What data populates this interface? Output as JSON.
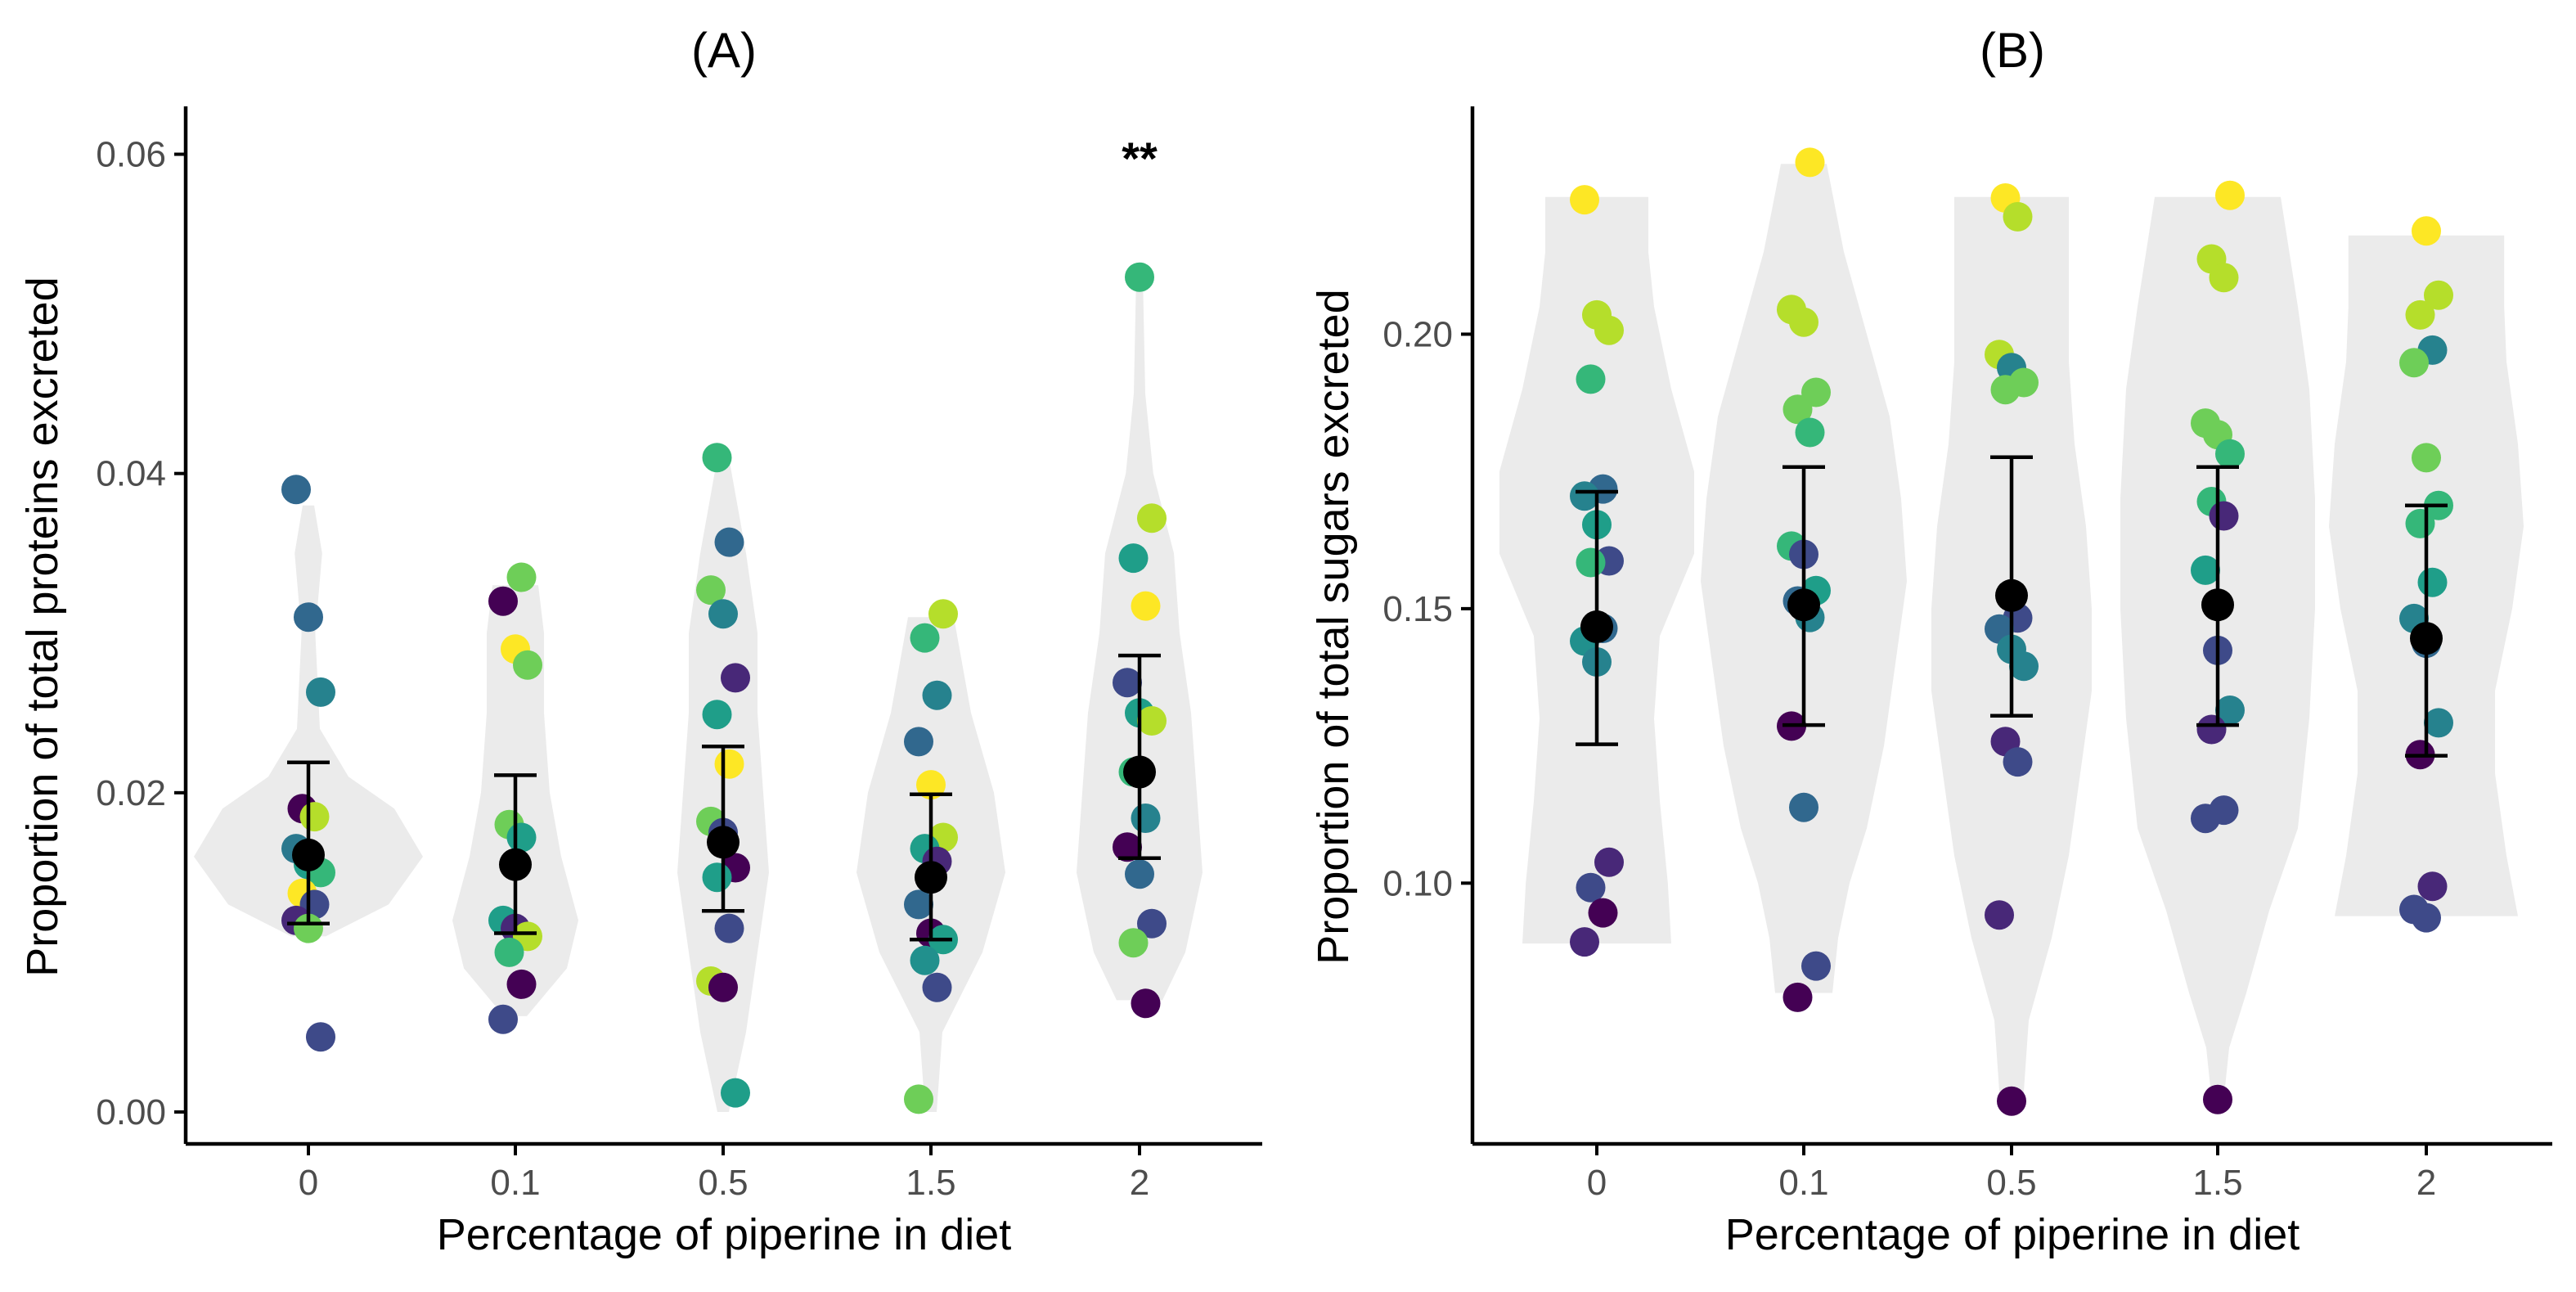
{
  "chart_data": [
    {
      "type": "scatter",
      "panel": "(A)",
      "title": "(A)",
      "xlabel": "Percentage of piperine in diet",
      "ylabel": "Proportion of total proteins excreted",
      "categories": [
        "0",
        "0.1",
        "0.5",
        "1.5",
        "2"
      ],
      "ylim": [
        -0.002,
        0.063
      ],
      "yticks": [
        0.0,
        0.02,
        0.04,
        0.06
      ],
      "ytick_labels": [
        "0.00",
        "0.02",
        "0.04",
        "0.06"
      ],
      "grid": false,
      "legend": "none",
      "violins": [
        {
          "min": 0.011,
          "max": 0.038,
          "profile": [
            [
              0.011,
              0.15
            ],
            [
              0.013,
              0.7
            ],
            [
              0.016,
              1.0
            ],
            [
              0.019,
              0.75
            ],
            [
              0.021,
              0.35
            ],
            [
              0.024,
              0.1
            ],
            [
              0.03,
              0.06
            ],
            [
              0.035,
              0.12
            ],
            [
              0.038,
              0.05
            ]
          ]
        },
        {
          "min": 0.006,
          "max": 0.033,
          "profile": [
            [
              0.006,
              0.1
            ],
            [
              0.009,
              0.45
            ],
            [
              0.012,
              0.55
            ],
            [
              0.016,
              0.4
            ],
            [
              0.02,
              0.3
            ],
            [
              0.025,
              0.25
            ],
            [
              0.03,
              0.25
            ],
            [
              0.033,
              0.2
            ]
          ]
        },
        {
          "min": 0.0,
          "max": 0.041,
          "profile": [
            [
              0.0,
              0.05
            ],
            [
              0.005,
              0.2
            ],
            [
              0.01,
              0.3
            ],
            [
              0.015,
              0.4
            ],
            [
              0.02,
              0.35
            ],
            [
              0.025,
              0.3
            ],
            [
              0.03,
              0.3
            ],
            [
              0.035,
              0.2
            ],
            [
              0.041,
              0.05
            ]
          ]
        },
        {
          "min": 0.0,
          "max": 0.031,
          "profile": [
            [
              0.0,
              0.05
            ],
            [
              0.005,
              0.1
            ],
            [
              0.01,
              0.45
            ],
            [
              0.015,
              0.65
            ],
            [
              0.02,
              0.55
            ],
            [
              0.025,
              0.35
            ],
            [
              0.031,
              0.2
            ]
          ]
        },
        {
          "min": 0.007,
          "max": 0.052,
          "profile": [
            [
              0.007,
              0.2
            ],
            [
              0.01,
              0.4
            ],
            [
              0.015,
              0.55
            ],
            [
              0.02,
              0.5
            ],
            [
              0.025,
              0.45
            ],
            [
              0.03,
              0.35
            ],
            [
              0.035,
              0.3
            ],
            [
              0.04,
              0.12
            ],
            [
              0.045,
              0.05
            ],
            [
              0.052,
              0.03
            ]
          ]
        }
      ],
      "series": [
        {
          "category": "0",
          "values": [
            0.039,
            0.031,
            0.0263,
            0.019,
            0.0185,
            0.0165,
            0.0155,
            0.015,
            0.0137,
            0.013,
            0.012,
            0.0115,
            0.0047
          ],
          "colors": [
            "#31688e",
            "#31688e",
            "#26828e",
            "#440154",
            "#b5de2b",
            "#2a788e",
            "#1f9e89",
            "#35b779",
            "#fde725",
            "#3e4a89",
            "#482878",
            "#6ece58",
            "#3e4a89"
          ]
        },
        {
          "category": "0.1",
          "values": [
            0.0335,
            0.032,
            0.029,
            0.028,
            0.018,
            0.0172,
            0.012,
            0.0115,
            0.011,
            0.01,
            0.008,
            0.0058
          ],
          "colors": [
            "#6ece58",
            "#440154",
            "#fde725",
            "#6ece58",
            "#6ece58",
            "#1f9e89",
            "#1f9e89",
            "#482878",
            "#b5de2b",
            "#35b779",
            "#440154",
            "#3e4a89"
          ]
        },
        {
          "category": "0.5",
          "values": [
            0.041,
            0.0357,
            0.0327,
            0.0312,
            0.0272,
            0.0249,
            0.0218,
            0.0182,
            0.0175,
            0.0153,
            0.0147,
            0.0115,
            0.0082,
            0.0078,
            0.0012
          ],
          "colors": [
            "#35b779",
            "#31688e",
            "#6ece58",
            "#26828e",
            "#482878",
            "#1f9e89",
            "#fde725",
            "#6ece58",
            "#3e4a89",
            "#440154",
            "#1f9e89",
            "#3e4a89",
            "#b5de2b",
            "#440154",
            "#1f9e89"
          ]
        },
        {
          "category": "1.5",
          "values": [
            0.0312,
            0.0297,
            0.0261,
            0.0232,
            0.0205,
            0.0172,
            0.0165,
            0.0157,
            0.013,
            0.0112,
            0.0108,
            0.0095,
            0.0078,
            0.0008
          ],
          "colors": [
            "#b5de2b",
            "#35b779",
            "#26828e",
            "#31688e",
            "#fde725",
            "#b5de2b",
            "#1f9e89",
            "#482878",
            "#31688e",
            "#440154",
            "#1f9e89",
            "#21908d",
            "#3e4a89",
            "#6ece58"
          ]
        },
        {
          "category": "2",
          "values": [
            0.0523,
            0.0372,
            0.0347,
            0.0317,
            0.0269,
            0.025,
            0.0245,
            0.0213,
            0.0184,
            0.0166,
            0.0149,
            0.0118,
            0.0106,
            0.0068
          ],
          "colors": [
            "#35b779",
            "#b5de2b",
            "#1f9e89",
            "#fde725",
            "#3e4a89",
            "#1f9e89",
            "#b5de2b",
            "#35b779",
            "#26828e",
            "#440154",
            "#31688e",
            "#3e4a89",
            "#6ece58",
            "#440154"
          ]
        }
      ],
      "means": [
        0.0161,
        0.0155,
        0.0169,
        0.0147,
        0.0213
      ],
      "error_bars": [
        [
          0.0118,
          0.0219
        ],
        [
          0.0112,
          0.0211
        ],
        [
          0.0126,
          0.0229
        ],
        [
          0.0108,
          0.0199
        ],
        [
          0.0159,
          0.0286
        ]
      ],
      "annotations": [
        {
          "category": "2",
          "text": "**",
          "y": 0.0605
        }
      ]
    },
    {
      "type": "scatter",
      "panel": "(B)",
      "title": "(B)",
      "xlabel": "Percentage of piperine in diet",
      "ylabel": "Proportion of total sugars excreted",
      "categories": [
        "0",
        "0.1",
        "0.5",
        "1.5",
        "2"
      ],
      "ylim": [
        0.0525,
        0.2415
      ],
      "yticks": [
        0.1,
        0.15,
        0.2
      ],
      "ytick_labels": [
        "0.10",
        "0.15",
        "0.20"
      ],
      "grid": false,
      "legend": "none",
      "violins": [
        {
          "min": 0.089,
          "max": 0.225,
          "profile": [
            [
              0.089,
              0.65
            ],
            [
              0.1,
              0.62
            ],
            [
              0.115,
              0.55
            ],
            [
              0.13,
              0.5
            ],
            [
              0.145,
              0.55
            ],
            [
              0.16,
              0.85
            ],
            [
              0.175,
              0.85
            ],
            [
              0.19,
              0.65
            ],
            [
              0.205,
              0.5
            ],
            [
              0.215,
              0.45
            ],
            [
              0.225,
              0.45
            ]
          ]
        },
        {
          "min": 0.08,
          "max": 0.231,
          "profile": [
            [
              0.08,
              0.25
            ],
            [
              0.09,
              0.3
            ],
            [
              0.1,
              0.4
            ],
            [
              0.11,
              0.55
            ],
            [
              0.125,
              0.7
            ],
            [
              0.14,
              0.8
            ],
            [
              0.155,
              0.9
            ],
            [
              0.17,
              0.85
            ],
            [
              0.185,
              0.75
            ],
            [
              0.2,
              0.55
            ],
            [
              0.215,
              0.35
            ],
            [
              0.231,
              0.2
            ]
          ]
        },
        {
          "min": 0.06,
          "max": 0.225,
          "profile": [
            [
              0.06,
              0.1
            ],
            [
              0.075,
              0.15
            ],
            [
              0.09,
              0.35
            ],
            [
              0.105,
              0.5
            ],
            [
              0.12,
              0.6
            ],
            [
              0.135,
              0.7
            ],
            [
              0.15,
              0.7
            ],
            [
              0.165,
              0.65
            ],
            [
              0.18,
              0.55
            ],
            [
              0.195,
              0.5
            ],
            [
              0.21,
              0.5
            ],
            [
              0.225,
              0.5
            ]
          ]
        },
        {
          "min": 0.06,
          "max": 0.225,
          "profile": [
            [
              0.06,
              0.05
            ],
            [
              0.07,
              0.1
            ],
            [
              0.08,
              0.25
            ],
            [
              0.095,
              0.45
            ],
            [
              0.11,
              0.7
            ],
            [
              0.13,
              0.8
            ],
            [
              0.15,
              0.85
            ],
            [
              0.17,
              0.85
            ],
            [
              0.19,
              0.8
            ],
            [
              0.205,
              0.7
            ],
            [
              0.225,
              0.55
            ]
          ]
        },
        {
          "min": 0.094,
          "max": 0.218,
          "profile": [
            [
              0.094,
              0.8
            ],
            [
              0.105,
              0.7
            ],
            [
              0.12,
              0.6
            ],
            [
              0.135,
              0.6
            ],
            [
              0.15,
              0.75
            ],
            [
              0.165,
              0.85
            ],
            [
              0.18,
              0.8
            ],
            [
              0.195,
              0.7
            ],
            [
              0.205,
              0.68
            ],
            [
              0.218,
              0.68
            ]
          ]
        }
      ],
      "series": [
        {
          "category": "0",
          "values": [
            0.2245,
            0.2035,
            0.2007,
            0.1918,
            0.1718,
            0.1705,
            0.1653,
            0.1587,
            0.1584,
            0.1464,
            0.1441,
            0.1403,
            0.1038,
            0.0992,
            0.0946,
            0.0893
          ],
          "colors": [
            "#fde725",
            "#b5de2b",
            "#b5de2b",
            "#35b779",
            "#31688e",
            "#26828e",
            "#1f9e89",
            "#3e4a89",
            "#35b779",
            "#31688e",
            "#21908d",
            "#26828e",
            "#482878",
            "#3e4a89",
            "#440154",
            "#482878"
          ]
        },
        {
          "category": "0.1",
          "values": [
            0.2313,
            0.2045,
            0.2022,
            0.1894,
            0.1863,
            0.1821,
            0.1614,
            0.1599,
            0.1533,
            0.1514,
            0.1484,
            0.1286,
            0.1138,
            0.0849,
            0.0792
          ],
          "colors": [
            "#fde725",
            "#b5de2b",
            "#b5de2b",
            "#6ece58",
            "#6ece58",
            "#35b779",
            "#35b779",
            "#3e4a89",
            "#1f9e89",
            "#31688e",
            "#26828e",
            "#440154",
            "#31688e",
            "#3e4a89",
            "#440154"
          ]
        },
        {
          "category": "0.5",
          "values": [
            0.2248,
            0.2214,
            0.1963,
            0.1939,
            0.1912,
            0.1899,
            0.1483,
            0.1463,
            0.1426,
            0.1395,
            0.1258,
            0.1221,
            0.0942,
            0.0603
          ],
          "colors": [
            "#fde725",
            "#b5de2b",
            "#b5de2b",
            "#26828e",
            "#6ece58",
            "#6ece58",
            "#3e4a89",
            "#31688e",
            "#26828e",
            "#26828e",
            "#482878",
            "#3e4a89",
            "#482878",
            "#440154"
          ]
        },
        {
          "category": "1.5",
          "values": [
            0.2253,
            0.2137,
            0.2103,
            0.1838,
            0.1817,
            0.1782,
            0.1695,
            0.1669,
            0.157,
            0.1424,
            0.1315,
            0.128,
            0.1133,
            0.1118,
            0.0606
          ],
          "colors": [
            "#fde725",
            "#b5de2b",
            "#b5de2b",
            "#6ece58",
            "#6ece58",
            "#35b779",
            "#35b779",
            "#482878",
            "#1f9e89",
            "#3e4a89",
            "#26828e",
            "#482878",
            "#3e4a89",
            "#3e4a89",
            "#440154"
          ]
        },
        {
          "category": "2",
          "values": [
            0.2188,
            0.2071,
            0.2035,
            0.1971,
            0.1948,
            0.1775,
            0.1688,
            0.1655,
            0.1548,
            0.1482,
            0.1437,
            0.1292,
            0.1234,
            0.0994,
            0.0952,
            0.0937
          ],
          "colors": [
            "#fde725",
            "#b5de2b",
            "#b5de2b",
            "#26828e",
            "#6ece58",
            "#6ece58",
            "#35b779",
            "#35b779",
            "#1f9e89",
            "#26828e",
            "#31688e",
            "#26828e",
            "#440154",
            "#482878",
            "#3e4a89",
            "#3e4a89"
          ]
        }
      ],
      "means": [
        0.1467,
        0.1507,
        0.1524,
        0.1507,
        0.1446
      ],
      "error_bars": [
        [
          0.1253,
          0.1713
        ],
        [
          0.1288,
          0.1758
        ],
        [
          0.1305,
          0.1776
        ],
        [
          0.1288,
          0.1758
        ],
        [
          0.1232,
          0.1688
        ]
      ],
      "annotations": []
    }
  ]
}
